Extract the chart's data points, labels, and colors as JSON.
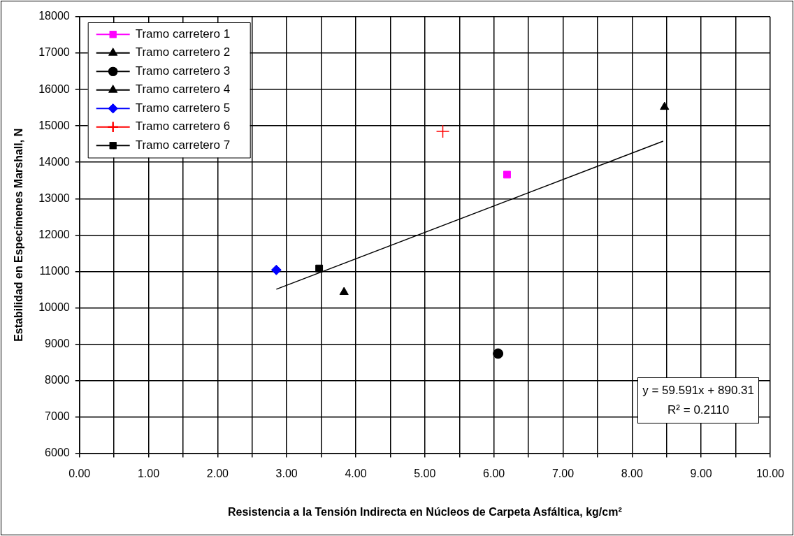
{
  "chart_data": {
    "type": "scatter",
    "xlabel": "Resistencia a la Tensión Indirecta en Núcleos de Carpeta Asfáltica, kg/cm²",
    "ylabel": "Estabilidad en Especímenes Marshall, N",
    "series": [
      {
        "name": "Tramo carretero 1",
        "color": "#ff00ff",
        "marker": "square",
        "x": [
          6.19
        ],
        "values": [
          13660
        ]
      },
      {
        "name": "Tramo carretero 2",
        "color": "#000000",
        "marker": "triangle",
        "x": [
          8.47
        ],
        "values": [
          15520
        ]
      },
      {
        "name": "Tramo carretero 3",
        "color": "#000000",
        "marker": "circle",
        "x": [
          6.06
        ],
        "values": [
          8740
        ]
      },
      {
        "name": "Tramo carretero 4",
        "color": "#000000",
        "marker": "triangle",
        "x": [
          3.83
        ],
        "values": [
          10430
        ]
      },
      {
        "name": "Tramo carretero 5",
        "color": "#0000ff",
        "marker": "diamond",
        "x": [
          2.85
        ],
        "values": [
          11040
        ]
      },
      {
        "name": "Tramo carretero 6",
        "color": "#ff0000",
        "marker": "cross",
        "x": [
          5.26
        ],
        "values": [
          14850
        ]
      },
      {
        "name": "Tramo carretero 7",
        "color": "#000000",
        "marker": "square",
        "x": [
          3.47
        ],
        "values": [
          11080
        ]
      },
      {
        "type": "line",
        "color": "#000000",
        "marker": "none",
        "x": [
          2.85,
          8.45
        ],
        "values": [
          10510,
          14580
        ]
      }
    ],
    "annotations": [
      "y = 59.591x + 890.31",
      "R² = 0.2110"
    ],
    "xlim": [
      0,
      10
    ],
    "xticks": [
      {
        "value": 0,
        "label": "0.00"
      },
      {
        "value": 0.5,
        "label": null
      },
      {
        "value": 1,
        "label": "1.00"
      },
      {
        "value": 1.5,
        "label": null
      },
      {
        "value": 2,
        "label": "2.00"
      },
      {
        "value": 2.5,
        "label": null
      },
      {
        "value": 3,
        "label": "3.00"
      },
      {
        "value": 3.5,
        "label": null
      },
      {
        "value": 4,
        "label": "4.00"
      },
      {
        "value": 4.5,
        "label": null
      },
      {
        "value": 5,
        "label": "5.00"
      },
      {
        "value": 5.5,
        "label": null
      },
      {
        "value": 6,
        "label": "6.00"
      },
      {
        "value": 6.5,
        "label": null
      },
      {
        "value": 7,
        "label": "7.00"
      },
      {
        "value": 7.5,
        "label": null
      },
      {
        "value": 8,
        "label": "8.00"
      },
      {
        "value": 8.5,
        "label": null
      },
      {
        "value": 9,
        "label": "9.00"
      },
      {
        "value": 9.5,
        "label": null
      },
      {
        "value": 10,
        "label": "10.00"
      }
    ],
    "ylim": [
      6000,
      18000
    ],
    "yticks": [
      6000,
      7000,
      8000,
      9000,
      10000,
      11000,
      12000,
      13000,
      14000,
      15000,
      16000,
      17000,
      18000
    ],
    "grid": true,
    "legend": "top left"
  }
}
